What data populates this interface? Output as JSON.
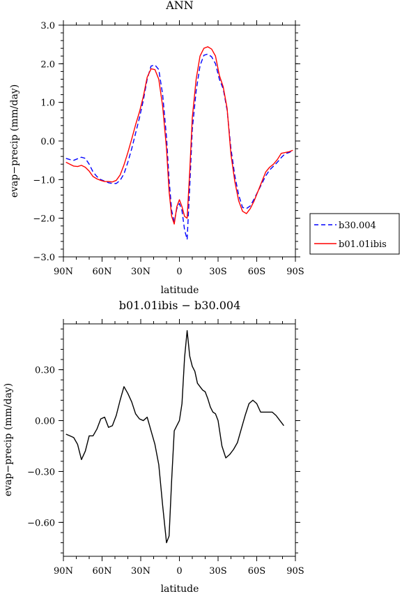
{
  "chart_data": [
    {
      "type": "line",
      "title": "ANN",
      "xlabel": "latitude",
      "ylabel": "evap−precip (mm/day)",
      "x_tick_labels": [
        "90N",
        "60N",
        "30N",
        "0",
        "30S",
        "60S",
        "90S"
      ],
      "x_tick_values": [
        90,
        60,
        30,
        0,
        -30,
        -60,
        -90
      ],
      "xlim": [
        90,
        -90
      ],
      "ylim": [
        -3.0,
        3.0
      ],
      "y_ticks": [
        {
          "value": 3.0,
          "label": "3.0"
        },
        {
          "value": 2.0,
          "label": "2.0"
        },
        {
          "value": 1.0,
          "label": "1.0"
        },
        {
          "value": 0.0,
          "label": "0.0"
        },
        {
          "value": -1.0,
          "label": "−1.0"
        },
        {
          "value": -2.0,
          "label": "−2.0"
        },
        {
          "value": -3.0,
          "label": "−3.0"
        }
      ],
      "legend_position": "right",
      "series": [
        {
          "name": "b30.004",
          "color": "#0000ff",
          "dash": "dashed",
          "points": [
            [
              88,
              -0.45
            ],
            [
              85,
              -0.48
            ],
            [
              82,
              -0.5
            ],
            [
              79,
              -0.46
            ],
            [
              76,
              -0.42
            ],
            [
              73,
              -0.45
            ],
            [
              70,
              -0.6
            ],
            [
              67,
              -0.8
            ],
            [
              64,
              -0.92
            ],
            [
              61,
              -1.0
            ],
            [
              58,
              -1.04
            ],
            [
              55,
              -1.08
            ],
            [
              52,
              -1.1
            ],
            [
              49,
              -1.1
            ],
            [
              46,
              -1.02
            ],
            [
              43,
              -0.85
            ],
            [
              40,
              -0.55
            ],
            [
              37,
              -0.2
            ],
            [
              34,
              0.2
            ],
            [
              31,
              0.6
            ],
            [
              28,
              1.05
            ],
            [
              25,
              1.6
            ],
            [
              22,
              1.94
            ],
            [
              19,
              1.97
            ],
            [
              16,
              1.85
            ],
            [
              13,
              1.2
            ],
            [
              10,
              0.1
            ],
            [
              8,
              -1.0
            ],
            [
              6,
              -1.8
            ],
            [
              4,
              -2.1
            ],
            [
              2,
              -1.75
            ],
            [
              0,
              -1.62
            ],
            [
              -2,
              -1.8
            ],
            [
              -4,
              -2.3
            ],
            [
              -6,
              -2.55
            ],
            [
              -8,
              -1.2
            ],
            [
              -10,
              0.3
            ],
            [
              -13,
              1.3
            ],
            [
              -16,
              1.95
            ],
            [
              -19,
              2.22
            ],
            [
              -22,
              2.25
            ],
            [
              -25,
              2.18
            ],
            [
              -28,
              2.0
            ],
            [
              -31,
              1.6
            ],
            [
              -34,
              1.35
            ],
            [
              -37,
              0.8
            ],
            [
              -40,
              -0.2
            ],
            [
              -43,
              -0.9
            ],
            [
              -46,
              -1.4
            ],
            [
              -49,
              -1.72
            ],
            [
              -52,
              -1.75
            ],
            [
              -55,
              -1.68
            ],
            [
              -58,
              -1.5
            ],
            [
              -61,
              -1.3
            ],
            [
              -64,
              -1.1
            ],
            [
              -67,
              -0.9
            ],
            [
              -70,
              -0.75
            ],
            [
              -73,
              -0.65
            ],
            [
              -76,
              -0.55
            ],
            [
              -79,
              -0.43
            ],
            [
              -82,
              -0.33
            ],
            [
              -85,
              -0.3
            ],
            [
              -88,
              -0.25
            ]
          ]
        },
        {
          "name": "b01.01ibis",
          "color": "#ff0000",
          "dash": "solid",
          "points": [
            [
              88,
              -0.55
            ],
            [
              85,
              -0.6
            ],
            [
              82,
              -0.65
            ],
            [
              79,
              -0.66
            ],
            [
              76,
              -0.63
            ],
            [
              73,
              -0.68
            ],
            [
              70,
              -0.78
            ],
            [
              67,
              -0.92
            ],
            [
              64,
              -0.98
            ],
            [
              61,
              -1.02
            ],
            [
              58,
              -1.05
            ],
            [
              55,
              -1.05
            ],
            [
              52,
              -1.06
            ],
            [
              49,
              -1.02
            ],
            [
              46,
              -0.88
            ],
            [
              43,
              -0.62
            ],
            [
              40,
              -0.3
            ],
            [
              37,
              0.05
            ],
            [
              34,
              0.42
            ],
            [
              31,
              0.75
            ],
            [
              28,
              1.15
            ],
            [
              25,
              1.65
            ],
            [
              22,
              1.87
            ],
            [
              19,
              1.85
            ],
            [
              16,
              1.6
            ],
            [
              13,
              0.9
            ],
            [
              10,
              -0.2
            ],
            [
              8,
              -1.3
            ],
            [
              6,
              -1.95
            ],
            [
              4,
              -2.15
            ],
            [
              2,
              -1.7
            ],
            [
              0,
              -1.52
            ],
            [
              -2,
              -1.7
            ],
            [
              -4,
              -1.95
            ],
            [
              -6,
              -2.0
            ],
            [
              -8,
              -0.8
            ],
            [
              -10,
              0.6
            ],
            [
              -13,
              1.6
            ],
            [
              -16,
              2.2
            ],
            [
              -19,
              2.4
            ],
            [
              -22,
              2.44
            ],
            [
              -25,
              2.38
            ],
            [
              -28,
              2.2
            ],
            [
              -31,
              1.7
            ],
            [
              -34,
              1.4
            ],
            [
              -37,
              0.85
            ],
            [
              -40,
              -0.35
            ],
            [
              -43,
              -1.05
            ],
            [
              -46,
              -1.55
            ],
            [
              -49,
              -1.82
            ],
            [
              -52,
              -1.88
            ],
            [
              -55,
              -1.75
            ],
            [
              -58,
              -1.55
            ],
            [
              -61,
              -1.3
            ],
            [
              -64,
              -1.05
            ],
            [
              -67,
              -0.8
            ],
            [
              -70,
              -0.68
            ],
            [
              -73,
              -0.6
            ],
            [
              -76,
              -0.48
            ],
            [
              -79,
              -0.32
            ],
            [
              -82,
              -0.3
            ],
            [
              -85,
              -0.28
            ],
            [
              -88,
              -0.24
            ]
          ]
        }
      ]
    },
    {
      "type": "line",
      "title": "b01.01ibis − b30.004",
      "xlabel": "latitude",
      "ylabel": "evap−precip (mm/day)",
      "x_tick_labels": [
        "90N",
        "60N",
        "30N",
        "0",
        "30S",
        "60S",
        "90S"
      ],
      "x_tick_values": [
        90,
        60,
        30,
        0,
        -30,
        -60,
        -90
      ],
      "xlim": [
        90,
        -90
      ],
      "ylim": [
        -0.8,
        0.57
      ],
      "y_ticks": [
        {
          "value": 0.3,
          "label": "0.30"
        },
        {
          "value": 0.0,
          "label": "0.00"
        },
        {
          "value": -0.3,
          "label": "−0.30"
        },
        {
          "value": -0.6,
          "label": "−0.60"
        }
      ],
      "series": [
        {
          "name": "",
          "color": "#000000",
          "dash": "solid",
          "points": [
            [
              88,
              -0.08
            ],
            [
              85,
              -0.09
            ],
            [
              82,
              -0.1
            ],
            [
              79,
              -0.14
            ],
            [
              76,
              -0.23
            ],
            [
              73,
              -0.18
            ],
            [
              70,
              -0.09
            ],
            [
              67,
              -0.09
            ],
            [
              64,
              -0.05
            ],
            [
              61,
              0.01
            ],
            [
              58,
              0.02
            ],
            [
              55,
              -0.04
            ],
            [
              52,
              -0.03
            ],
            [
              49,
              0.03
            ],
            [
              46,
              0.12
            ],
            [
              43,
              0.2
            ],
            [
              40,
              0.16
            ],
            [
              37,
              0.11
            ],
            [
              34,
              0.04
            ],
            [
              31,
              0.01
            ],
            [
              28,
              0.0
            ],
            [
              25,
              0.02
            ],
            [
              22,
              -0.06
            ],
            [
              19,
              -0.14
            ],
            [
              16,
              -0.26
            ],
            [
              13,
              -0.5
            ],
            [
              10,
              -0.72
            ],
            [
              8,
              -0.68
            ],
            [
              6,
              -0.35
            ],
            [
              4,
              -0.06
            ],
            [
              2,
              -0.03
            ],
            [
              0,
              0.0
            ],
            [
              -2,
              0.1
            ],
            [
              -4,
              0.37
            ],
            [
              -6,
              0.53
            ],
            [
              -8,
              0.38
            ],
            [
              -10,
              0.32
            ],
            [
              -12,
              0.29
            ],
            [
              -14,
              0.22
            ],
            [
              -16,
              0.2
            ],
            [
              -18,
              0.18
            ],
            [
              -20,
              0.17
            ],
            [
              -22,
              0.13
            ],
            [
              -24,
              0.08
            ],
            [
              -26,
              0.05
            ],
            [
              -28,
              0.04
            ],
            [
              -30,
              0.0
            ],
            [
              -33,
              -0.15
            ],
            [
              -36,
              -0.22
            ],
            [
              -39,
              -0.2
            ],
            [
              -42,
              -0.17
            ],
            [
              -45,
              -0.13
            ],
            [
              -48,
              -0.05
            ],
            [
              -51,
              0.03
            ],
            [
              -54,
              0.1
            ],
            [
              -57,
              0.12
            ],
            [
              -60,
              0.1
            ],
            [
              -63,
              0.05
            ],
            [
              -66,
              0.05
            ],
            [
              -69,
              0.05
            ],
            [
              -72,
              0.05
            ],
            [
              -75,
              0.03
            ],
            [
              -78,
              0.0
            ],
            [
              -81,
              -0.03
            ]
          ]
        }
      ]
    }
  ]
}
